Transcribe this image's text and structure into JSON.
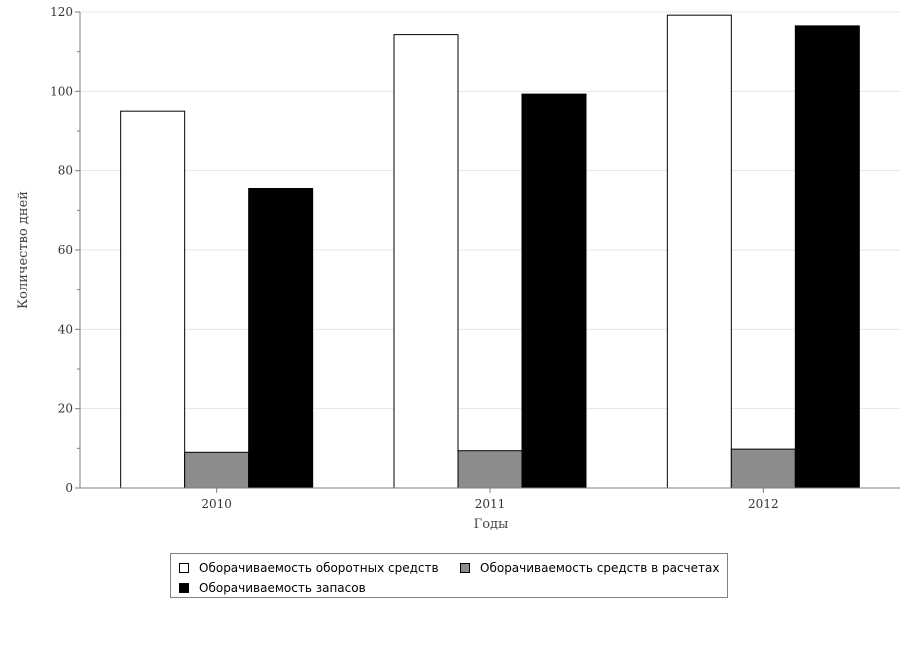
{
  "chart_data": {
    "type": "bar",
    "xlabel": "Годы",
    "ylabel": "Количество дней",
    "categories": [
      "2010",
      "2011",
      "2012"
    ],
    "ylim": [
      0,
      120
    ],
    "yticks": [
      0,
      20,
      40,
      60,
      80,
      100,
      120
    ],
    "grid": true,
    "legend_position": "bottom",
    "series": [
      {
        "name": "Оборачиваемость оборотных средств",
        "color": "#ffffff",
        "values": [
          95,
          114.3,
          119.2
        ]
      },
      {
        "name": "Оборачиваемость средств в расчетах",
        "color": "#8c8c8c",
        "values": [
          9,
          9.4,
          9.8
        ]
      },
      {
        "name": "Оборачиваемость запасов",
        "color": "#000000",
        "values": [
          75.5,
          99.3,
          116.5
        ]
      }
    ]
  }
}
